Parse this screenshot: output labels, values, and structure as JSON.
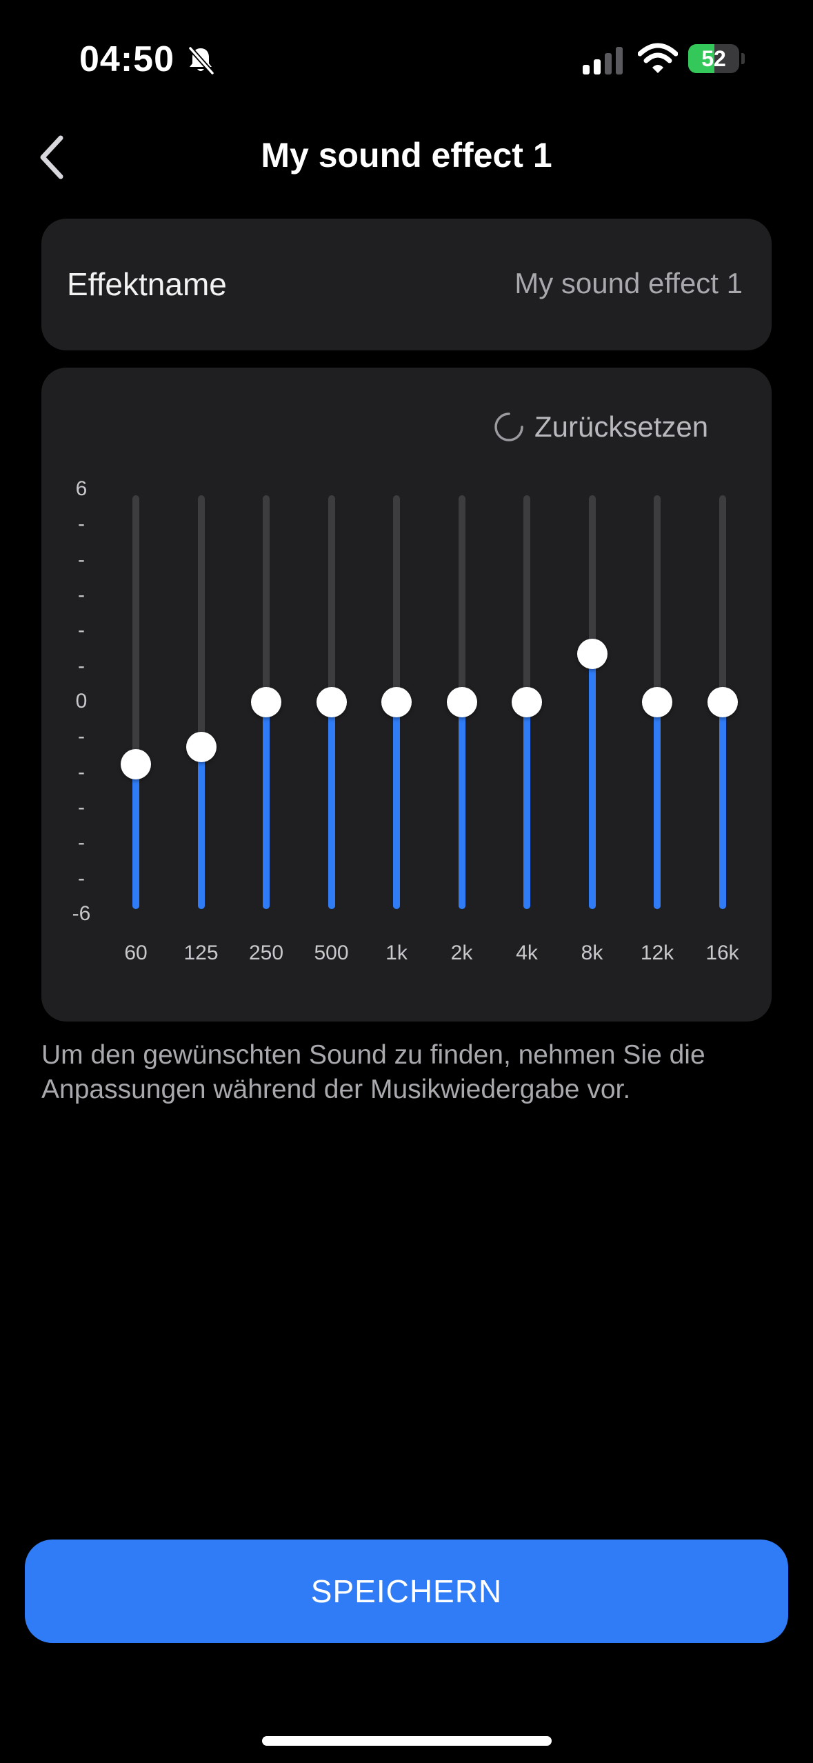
{
  "status_bar": {
    "time": "04:50",
    "battery_percent": "52",
    "battery_level": 0.52,
    "signal_bars_active": 2,
    "signal_bars_total": 4,
    "icons": [
      "bell-slash-icon",
      "cellular-signal-icon",
      "wifi-icon",
      "battery-charging-icon"
    ]
  },
  "header": {
    "back_icon": "chevron-left-icon",
    "title": "My sound effect 1"
  },
  "name_row": {
    "label": "Effektname",
    "value": "My sound effect 1"
  },
  "equalizer": {
    "reset_label": "Zurücksetzen",
    "reset_icon": "refresh-icon",
    "y_axis_labels": [
      "6",
      "-",
      "-",
      "-",
      "-",
      "-",
      "0",
      "-",
      "-",
      "-",
      "-",
      "-",
      "-6"
    ],
    "range": [
      -6,
      6
    ],
    "bands": [
      {
        "label": "60",
        "value": -1.8
      },
      {
        "label": "125",
        "value": -1.3
      },
      {
        "label": "250",
        "value": 0
      },
      {
        "label": "500",
        "value": 0
      },
      {
        "label": "1k",
        "value": 0
      },
      {
        "label": "2k",
        "value": 0
      },
      {
        "label": "4k",
        "value": 0
      },
      {
        "label": "8k",
        "value": 1.4
      },
      {
        "label": "12k",
        "value": 0
      },
      {
        "label": "16k",
        "value": 0
      }
    ],
    "accent_color": "#2f7cf6"
  },
  "hint": "Um den gewünschten Sound zu finden, nehmen Sie die Anpassungen während der Musikwiedergabe vor.",
  "save_label": "SPEICHERN"
}
